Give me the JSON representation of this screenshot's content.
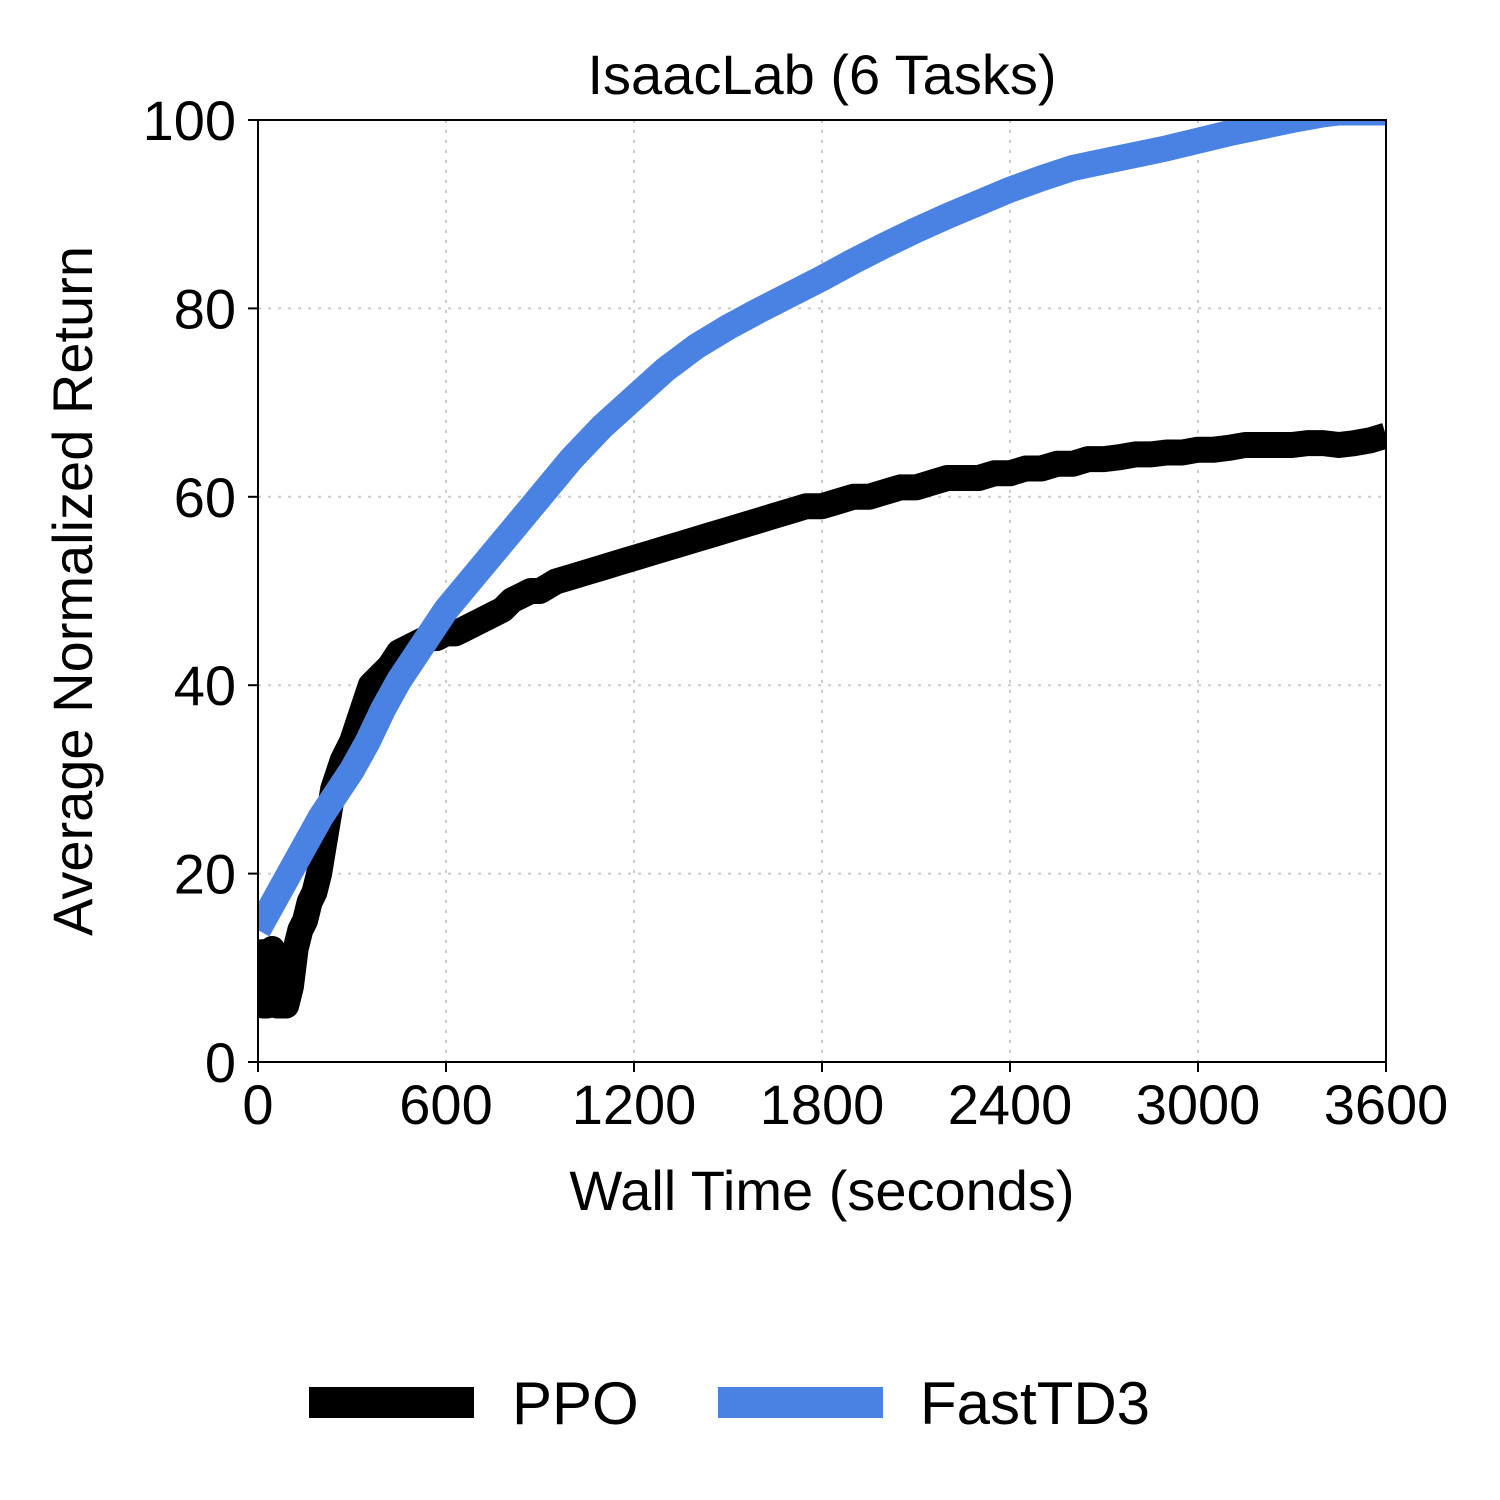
{
  "chart_data": {
    "type": "line",
    "title": "IsaacLab (6 Tasks)",
    "xlabel": "Wall Time (seconds)",
    "ylabel": "Average Normalized Return",
    "xlim": [
      0,
      3600
    ],
    "ylim": [
      0,
      100
    ],
    "xticks": [
      "0",
      "600",
      "1200",
      "1800",
      "2400",
      "3000",
      "3600"
    ],
    "yticks": [
      "0",
      "20",
      "40",
      "60",
      "80",
      "100"
    ],
    "grid": true,
    "legend_position": "bottom-center",
    "series": [
      {
        "name": "PPO",
        "color": "#000000",
        "x": [
          0,
          15,
          30,
          45,
          60,
          75,
          90,
          105,
          120,
          135,
          150,
          165,
          180,
          195,
          210,
          225,
          240,
          270,
          300,
          330,
          360,
          390,
          420,
          450,
          480,
          510,
          540,
          570,
          600,
          630,
          660,
          690,
          720,
          750,
          780,
          810,
          840,
          870,
          900,
          950,
          1000,
          1050,
          1100,
          1150,
          1200,
          1250,
          1300,
          1350,
          1400,
          1450,
          1500,
          1550,
          1600,
          1650,
          1700,
          1750,
          1800,
          1850,
          1900,
          1950,
          2000,
          2050,
          2100,
          2150,
          2200,
          2250,
          2300,
          2350,
          2400,
          2450,
          2500,
          2550,
          2600,
          2650,
          2700,
          2750,
          2800,
          2850,
          2900,
          2950,
          3000,
          3050,
          3100,
          3150,
          3200,
          3250,
          3300,
          3350,
          3400,
          3450,
          3500,
          3550,
          3600
        ],
        "y": [
          13,
          6,
          6,
          12,
          6,
          6,
          6,
          8,
          12,
          14,
          15,
          17,
          18,
          20,
          23,
          26,
          29,
          32,
          34,
          37,
          40,
          41,
          42,
          43.5,
          44,
          44.5,
          45,
          45,
          45.5,
          45.5,
          46,
          46.5,
          47,
          47.5,
          48,
          49,
          49.5,
          50,
          50,
          51,
          51.5,
          52,
          52.5,
          53,
          53.5,
          54,
          54.5,
          55,
          55.5,
          56,
          56.5,
          57,
          57.5,
          58,
          58.5,
          59,
          59,
          59.5,
          60,
          60,
          60.5,
          61,
          61,
          61.5,
          62,
          62,
          62,
          62.5,
          62.5,
          63,
          63,
          63.5,
          63.5,
          64,
          64,
          64.2,
          64.5,
          64.5,
          64.7,
          64.7,
          65,
          65,
          65.2,
          65.5,
          65.5,
          65.5,
          65.5,
          65.7,
          65.7,
          65.5,
          65.7,
          66,
          66.5
        ]
      },
      {
        "name": "FastTD3",
        "color": "#4a82e4",
        "x": [
          0,
          100,
          200,
          300,
          350,
          400,
          450,
          500,
          600,
          700,
          800,
          900,
          1000,
          1100,
          1200,
          1300,
          1400,
          1500,
          1600,
          1700,
          1800,
          1900,
          2000,
          2100,
          2200,
          2300,
          2400,
          2500,
          2600,
          2700,
          2800,
          2900,
          3000,
          3100,
          3200,
          3300,
          3400,
          3450,
          3500,
          3550,
          3600
        ],
        "y": [
          14,
          20,
          26,
          31,
          34,
          37.5,
          40.5,
          43,
          48,
          52,
          56,
          60,
          64,
          67.5,
          70.5,
          73.5,
          76,
          78,
          79.8,
          81.5,
          83.2,
          85,
          86.7,
          88.3,
          89.8,
          91.2,
          92.6,
          93.8,
          94.9,
          95.6,
          96.3,
          97,
          97.8,
          98.6,
          99.3,
          100,
          100.6,
          100.8,
          100.8,
          100.8,
          100.8
        ]
      }
    ]
  }
}
